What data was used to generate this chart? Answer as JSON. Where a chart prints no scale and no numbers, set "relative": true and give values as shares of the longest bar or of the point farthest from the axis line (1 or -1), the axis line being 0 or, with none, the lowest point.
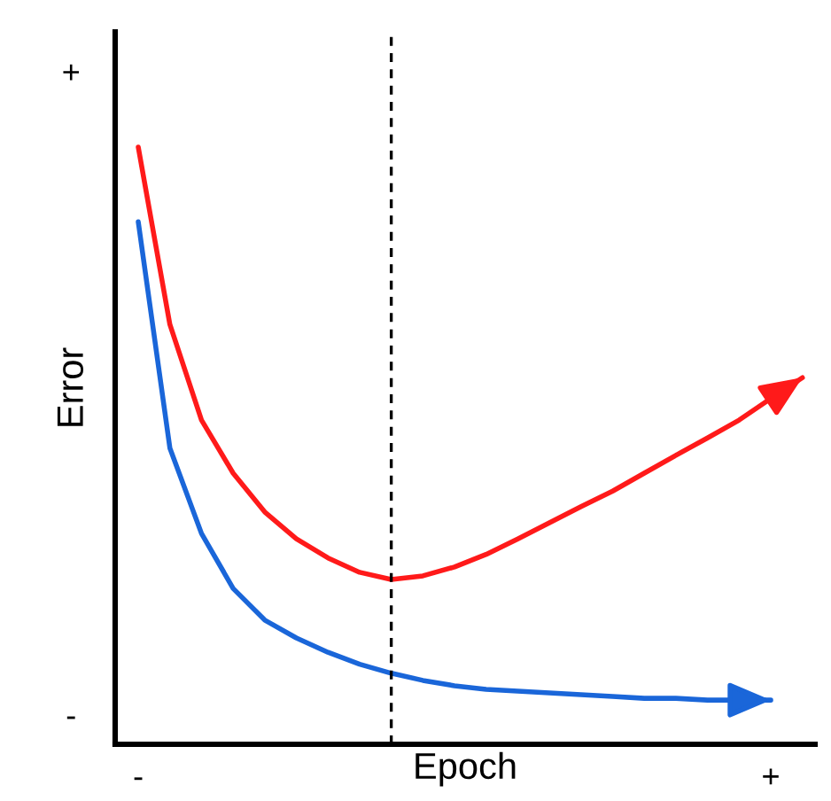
{
  "chart_data": {
    "type": "line",
    "xlabel": "Epoch",
    "ylabel": "Error",
    "relative": true,
    "categories": [
      "-",
      null,
      null,
      null,
      null,
      null,
      null,
      null,
      null,
      null,
      null,
      null,
      null,
      null,
      null,
      null,
      null,
      null,
      null,
      null,
      "+",
      null
    ],
    "annotations": [
      "+",
      "-"
    ],
    "legend": false,
    "marker": "none",
    "line_style": "solid",
    "series": [
      {
        "color": "#ff1a1a",
        "values": [
          1.0,
          0.703,
          0.543,
          0.454,
          0.389,
          0.344,
          0.312,
          0.288,
          0.276,
          0.282,
          0.297,
          0.318,
          0.344,
          0.371,
          0.398,
          0.424,
          0.454,
          0.484,
          0.513,
          0.543,
          0.579,
          0.614
        ]
      },
      {
        "color": "#1a66d9",
        "values": [
          0.875,
          0.496,
          0.353,
          0.261,
          0.208,
          0.178,
          0.154,
          0.134,
          0.119,
          0.107,
          0.098,
          0.092,
          0.089,
          0.086,
          0.083,
          0.08,
          0.077,
          0.077,
          0.074,
          0.074,
          0.074,
          null
        ]
      }
    ]
  }
}
